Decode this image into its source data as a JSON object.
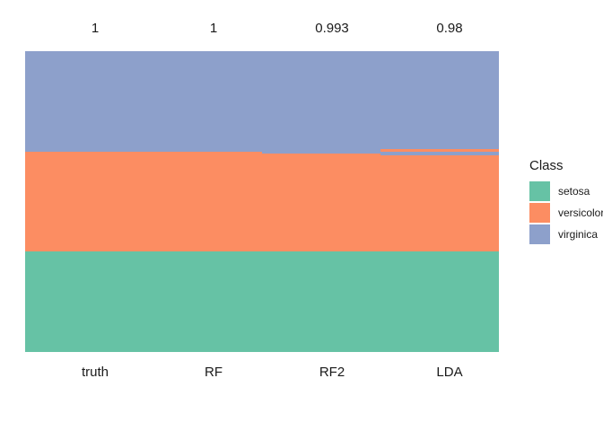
{
  "figure": {
    "background_color": "#ffffff",
    "text_color": "#1a1a1a"
  },
  "legend": {
    "title": "Class",
    "position": "right",
    "items": [
      {
        "label": "setosa",
        "color": "#66C2A5"
      },
      {
        "label": "versicolor",
        "color": "#FC8D62"
      },
      {
        "label": "virginica",
        "color": "#8DA0CB"
      }
    ]
  },
  "chart_data": {
    "type": "bar",
    "subtype": "stacked-class-prediction-columns",
    "title": "",
    "xlabel": "",
    "ylabel": "",
    "grid": false,
    "axis_lines": false,
    "legend_position": "right",
    "n_observations_per_column": 150,
    "columns": [
      "truth",
      "RF",
      "RF2",
      "LDA"
    ],
    "top_labels": [
      "1",
      "1",
      "0.993",
      "0.98"
    ],
    "accuracy_values": [
      1,
      1,
      0.993,
      0.98
    ],
    "classes": [
      "setosa",
      "versicolor",
      "virginica"
    ],
    "class_colors": {
      "setosa": "#66C2A5",
      "versicolor": "#FC8D62",
      "virginica": "#8DA0CB"
    },
    "stack_order_note": "segments listed top to bottom; counts are observations out of 150",
    "segments": {
      "truth": [
        {
          "class": "virginica",
          "count": 50
        },
        {
          "class": "versicolor",
          "count": 50
        },
        {
          "class": "setosa",
          "count": 50
        }
      ],
      "RF": [
        {
          "class": "virginica",
          "count": 50
        },
        {
          "class": "versicolor",
          "count": 50
        },
        {
          "class": "setosa",
          "count": 50
        }
      ],
      "RF2": [
        {
          "class": "virginica",
          "count": 51
        },
        {
          "class": "versicolor",
          "count": 49
        },
        {
          "class": "setosa",
          "count": 50
        }
      ],
      "LDA": [
        {
          "class": "virginica",
          "count": 49
        },
        {
          "class": "versicolor",
          "count": 1
        },
        {
          "class": "virginica",
          "count": 2
        },
        {
          "class": "versicolor",
          "count": 48
        },
        {
          "class": "setosa",
          "count": 50
        }
      ]
    }
  }
}
